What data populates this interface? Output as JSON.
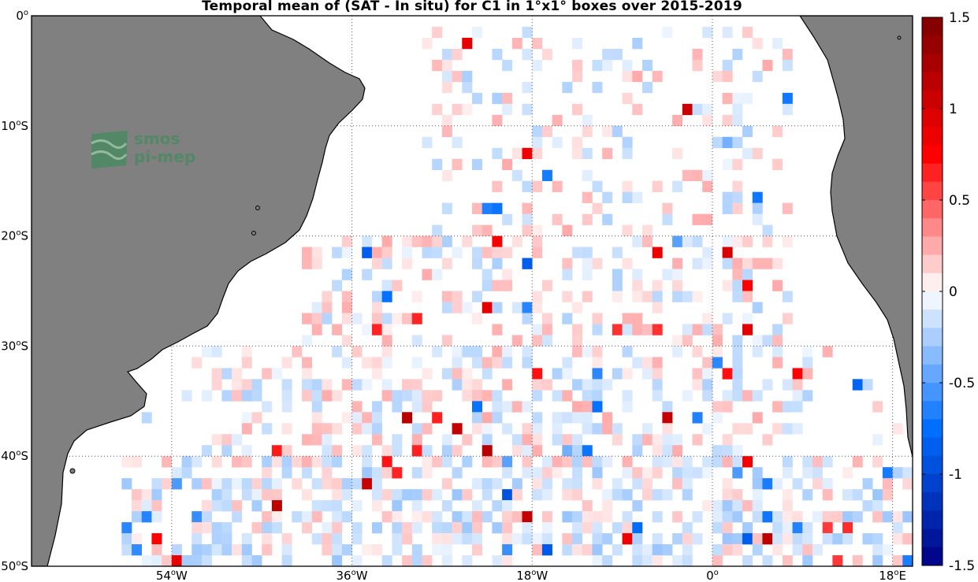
{
  "title": "Temporal mean of (SAT - In situ) for C1 in 1°x1° boxes over 2015-2019",
  "logo": {
    "line1": "smos",
    "line2": "pi-mep"
  },
  "map": {
    "lon_range": [
      -68,
      20
    ],
    "lat_range": [
      -50,
      0
    ],
    "lat_labels": [
      {
        "value": 0,
        "text": "0",
        "suffix": ""
      },
      {
        "value": -10,
        "text": "10",
        "suffix": "S"
      },
      {
        "value": -20,
        "text": "20",
        "suffix": "S"
      },
      {
        "value": -30,
        "text": "30",
        "suffix": "S"
      },
      {
        "value": -40,
        "text": "40",
        "suffix": "S"
      },
      {
        "value": -50,
        "text": "50",
        "suffix": "S"
      }
    ],
    "lon_labels": [
      {
        "value": -54,
        "text": "54",
        "suffix": "W"
      },
      {
        "value": -36,
        "text": "36",
        "suffix": "W"
      },
      {
        "value": -18,
        "text": "18",
        "suffix": "W"
      },
      {
        "value": 0,
        "text": "0",
        "suffix": ""
      },
      {
        "value": 18,
        "text": "18",
        "suffix": "E"
      }
    ],
    "gridlines": true
  },
  "colorbar": {
    "range": [
      -1.5,
      1.5
    ],
    "labels": [
      {
        "value": 1.5,
        "text": "1.5"
      },
      {
        "value": 1,
        "text": "1"
      },
      {
        "value": 0.5,
        "text": "0.5"
      },
      {
        "value": 0,
        "text": "0"
      },
      {
        "value": -0.5,
        "text": "-0.5"
      },
      {
        "value": -1,
        "text": "-1"
      },
      {
        "value": -1.5,
        "text": "-1.5"
      }
    ],
    "levels": 30
  },
  "colors": {
    "land": "#808080",
    "ocean": "#ffffff",
    "positive": "#ff0000",
    "negative": "#0000ff"
  }
}
